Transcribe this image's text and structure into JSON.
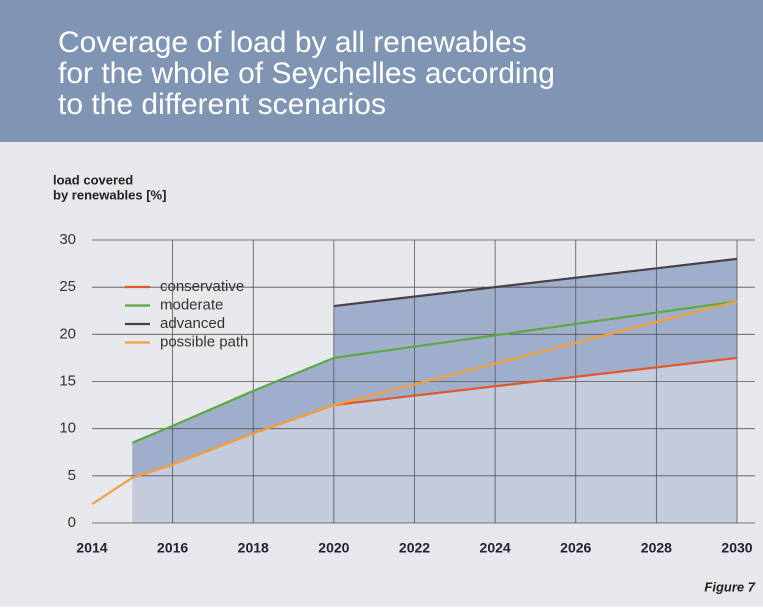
{
  "chart_data": {
    "type": "line",
    "title": [
      "Coverage of load by all renewables",
      "for the whole of Seychelles according",
      "to the different scenarios"
    ],
    "y_label": [
      "load covered",
      "by renewables [%]"
    ],
    "caption": "Figure 7",
    "xlim": [
      2014,
      2030
    ],
    "xticks": [
      2014,
      2016,
      2018,
      2020,
      2022,
      2024,
      2026,
      2028,
      2030
    ],
    "ylim": [
      0,
      30
    ],
    "yticks": [
      0,
      5,
      10,
      15,
      20,
      25,
      30
    ],
    "grid": true,
    "legend": "upper left",
    "series": [
      {
        "name": "conservative",
        "color": "#e0572a",
        "x": [
          2015,
          2016,
          2018,
          2020,
          2030
        ],
        "values": [
          4.8,
          6.2,
          9.5,
          12.5,
          17.5
        ]
      },
      {
        "name": "moderate",
        "color": "#5ea843",
        "x": [
          2015,
          2016,
          2018,
          2020,
          2030
        ],
        "values": [
          8.5,
          10.3,
          14,
          17.5,
          23.5
        ]
      },
      {
        "name": "advanced",
        "color": "#4a4048",
        "x": [
          2020,
          2030
        ],
        "values": [
          23,
          28
        ]
      },
      {
        "name": "possible path",
        "color": "#f3a03c",
        "x": [
          2014,
          2015,
          2016,
          2018,
          2020,
          2030
        ],
        "values": [
          2,
          4.8,
          6.2,
          9.5,
          12.5,
          23.5
        ]
      }
    ]
  }
}
